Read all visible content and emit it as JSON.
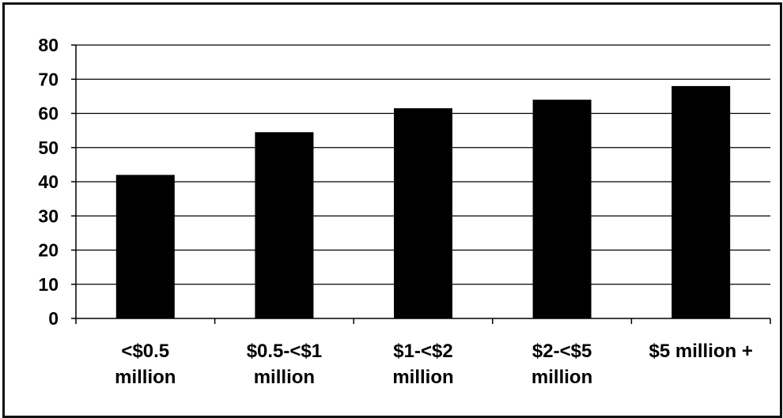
{
  "chart_data": {
    "type": "bar",
    "categories": [
      [
        "<$0.5",
        "million"
      ],
      [
        "$0.5-<$1",
        "million"
      ],
      [
        "$1-<$2",
        "million"
      ],
      [
        "$2-<$5",
        "million"
      ],
      [
        "$5 million +"
      ]
    ],
    "values": [
      42,
      54.5,
      61.5,
      64,
      68
    ],
    "ylim": [
      0,
      80
    ],
    "yticks": [
      0,
      10,
      20,
      30,
      40,
      50,
      60,
      70,
      80
    ],
    "grid": true,
    "bar_color": "#000000",
    "title": "",
    "xlabel": "",
    "ylabel": ""
  }
}
